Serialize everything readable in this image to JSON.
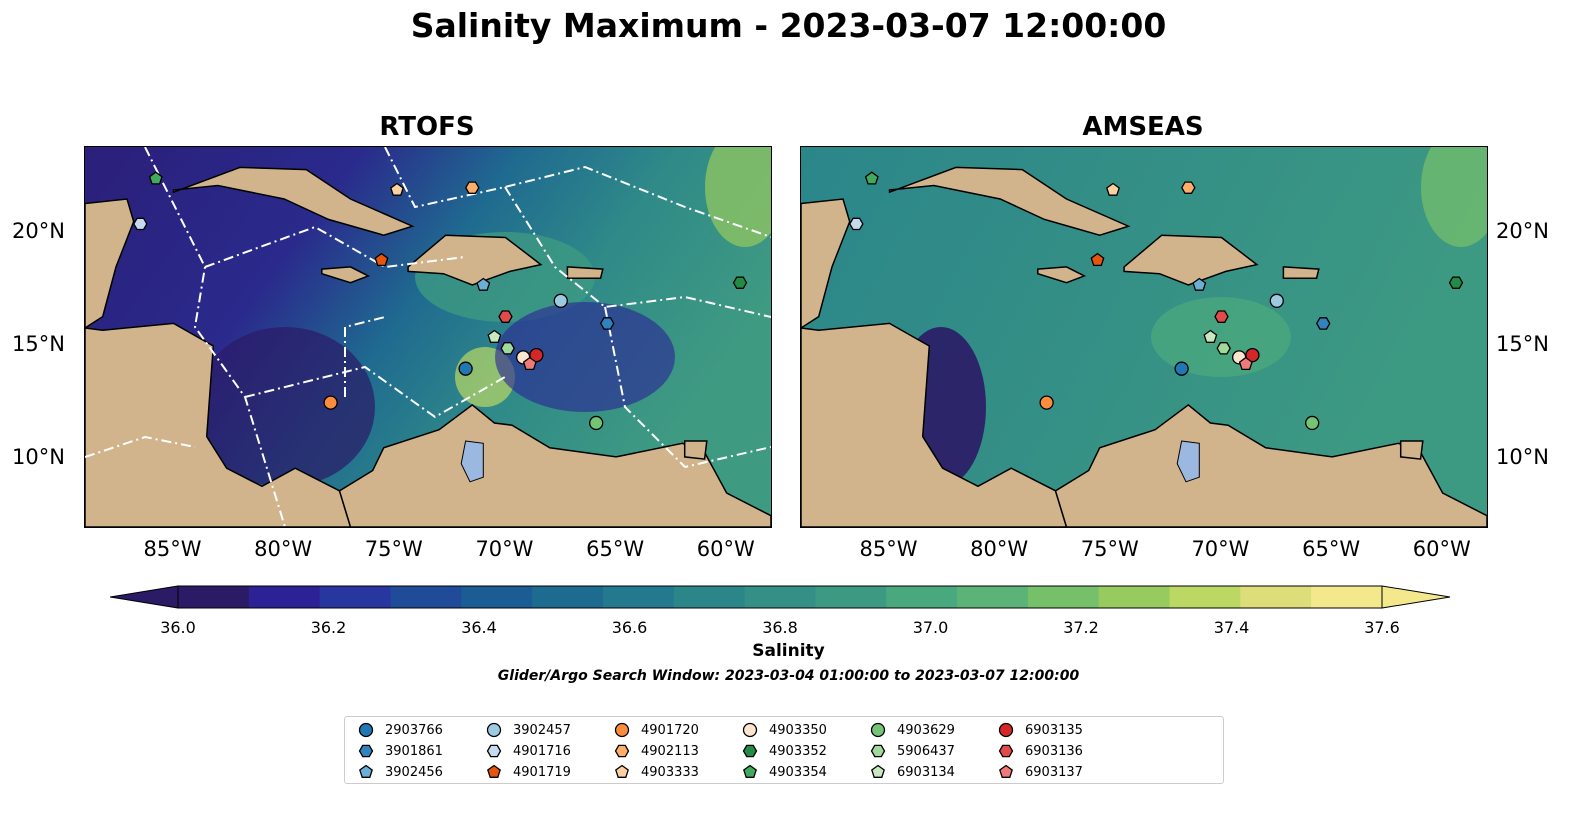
{
  "title": "Salinity Maximum - 2023-03-07 12:00:00",
  "panels": [
    {
      "title": "RTOFS"
    },
    {
      "title": "AMSEAS"
    }
  ],
  "axes": {
    "lon_labels": [
      "85°W",
      "80°W",
      "75°W",
      "70°W",
      "65°W",
      "60°W"
    ],
    "lat_labels": [
      "20°N",
      "15°N",
      "10°N"
    ]
  },
  "colorbar": {
    "label": "Salinity",
    "ticks": [
      "36.0",
      "36.2",
      "36.4",
      "36.6",
      "36.8",
      "37.0",
      "37.2",
      "37.4",
      "37.6"
    ],
    "min": 36.0,
    "max": 37.6,
    "colors": [
      "#2b1a66",
      "#2c2296",
      "#27379f",
      "#1f4b99",
      "#1b5c94",
      "#1d6c90",
      "#23798e",
      "#2b868a",
      "#348f86",
      "#3d9a82",
      "#4aa87e",
      "#5bb377",
      "#77c06a",
      "#98cb5e",
      "#bbd865",
      "#ddde79",
      "#f3e98c"
    ]
  },
  "search_window": "Glider/Argo Search Window: 2023-03-04 01:00:00 to 2023-03-07 12:00:00",
  "legend": [
    {
      "id": "2903766",
      "marker": "circle",
      "color": "#1f77b4"
    },
    {
      "id": "3901861",
      "marker": "hexagon",
      "color": "#3182bd"
    },
    {
      "id": "3902456",
      "marker": "pentagon",
      "color": "#6baed6"
    },
    {
      "id": "3902457",
      "marker": "circle",
      "color": "#9ecae1"
    },
    {
      "id": "4901716",
      "marker": "hexagon",
      "color": "#c6dbef"
    },
    {
      "id": "4901719",
      "marker": "pentagon",
      "color": "#e6550d"
    },
    {
      "id": "4901720",
      "marker": "circle",
      "color": "#fd8d3c"
    },
    {
      "id": "4902113",
      "marker": "hexagon",
      "color": "#fdae6b"
    },
    {
      "id": "4903333",
      "marker": "pentagon",
      "color": "#fdd0a2"
    },
    {
      "id": "4903350",
      "marker": "circle",
      "color": "#fee6ce"
    },
    {
      "id": "4903352",
      "marker": "hexagon",
      "color": "#238b45"
    },
    {
      "id": "4903354",
      "marker": "pentagon",
      "color": "#41ab5d"
    },
    {
      "id": "4903629",
      "marker": "circle",
      "color": "#74c476"
    },
    {
      "id": "5906437",
      "marker": "hexagon",
      "color": "#a1d99b"
    },
    {
      "id": "6903134",
      "marker": "pentagon",
      "color": "#c7e9c0"
    },
    {
      "id": "6903135",
      "marker": "circle",
      "color": "#d62728"
    },
    {
      "id": "6903136",
      "marker": "hexagon",
      "color": "#e34a4a"
    },
    {
      "id": "6903137",
      "marker": "pentagon",
      "color": "#f07a7a"
    }
  ],
  "floats": [
    {
      "id": "2903766",
      "lon": -71.8,
      "lat": 14.0
    },
    {
      "id": "3901861",
      "lon": -65.4,
      "lat": 16.0
    },
    {
      "id": "3902456",
      "lon": -71.0,
      "lat": 17.7
    },
    {
      "id": "3902457",
      "lon": -67.5,
      "lat": 17.0
    },
    {
      "id": "4901716",
      "lon": -86.5,
      "lat": 20.4
    },
    {
      "id": "4901719",
      "lon": -75.6,
      "lat": 18.8
    },
    {
      "id": "4901720",
      "lon": -77.9,
      "lat": 12.5
    },
    {
      "id": "4902113",
      "lon": -71.5,
      "lat": 22.0
    },
    {
      "id": "4903333",
      "lon": -74.9,
      "lat": 21.9
    },
    {
      "id": "4903350",
      "lon": -69.2,
      "lat": 14.5
    },
    {
      "id": "4903352",
      "lon": -59.4,
      "lat": 17.8
    },
    {
      "id": "4903354",
      "lon": -85.8,
      "lat": 22.4
    },
    {
      "id": "4903629",
      "lon": -65.9,
      "lat": 11.6
    },
    {
      "id": "5906437",
      "lon": -69.9,
      "lat": 14.9
    },
    {
      "id": "6903134",
      "lon": -70.5,
      "lat": 15.4
    },
    {
      "id": "6903135",
      "lon": -68.6,
      "lat": 14.6
    },
    {
      "id": "6903136",
      "lon": -70.0,
      "lat": 16.3
    },
    {
      "id": "6903137",
      "lon": -68.9,
      "lat": 14.2
    }
  ],
  "colors": {
    "land": "#d2b48c",
    "lake": "#9ab8e0",
    "coast": "#000000",
    "eez": "#ffffff"
  }
}
